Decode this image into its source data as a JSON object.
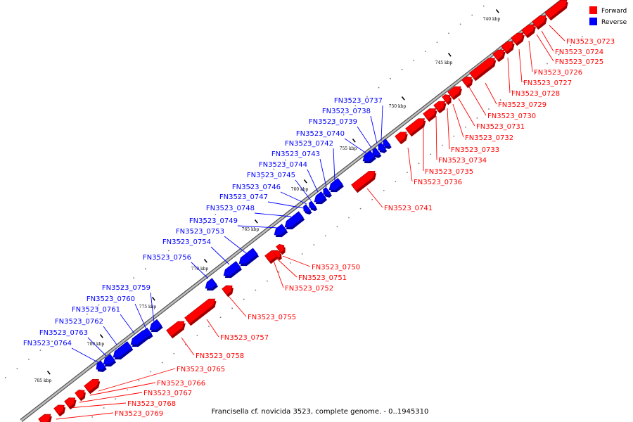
{
  "colors": {
    "forward": "#ff0000",
    "forward_dark": "#a00000",
    "reverse": "#0000ff",
    "reverse_dark": "#0000a0",
    "backbone": "#808080"
  },
  "legend": {
    "forward_label": "Forward",
    "reverse_label": "Reverse"
  },
  "caption": "Francisella cf. novicida 3523, complete genome. - 0..1945310",
  "ticks": [
    "740 kbp",
    "745 kbp",
    "750 kbp",
    "755 kbp",
    "760 kbp",
    "765 kbp",
    "770 kbp",
    "775 kbp",
    "780 kbp",
    "785 kbp"
  ],
  "forward_genes": [
    "FN3523_0723",
    "FN3523_0724",
    "FN3523_0725",
    "FN3523_0726",
    "FN3523_0727",
    "FN3523_0728",
    "FN3523_0729",
    "FN3523_0730",
    "FN3523_0731",
    "FN3523_0732",
    "FN3523_0733",
    "FN3523_0734",
    "FN3523_0735",
    "FN3523_0736",
    "FN3523_0741",
    "FN3523_0750",
    "FN3523_0751",
    "FN3523_0752",
    "FN3523_0755",
    "FN3523_0757",
    "FN3523_0758",
    "FN3523_0765",
    "FN3523_0766",
    "FN3523_0767",
    "FN3523_0768",
    "FN3523_0769"
  ],
  "reverse_genes": [
    "FN3523_0737",
    "FN3523_0738",
    "FN3523_0739",
    "FN3523_0740",
    "FN3523_0742",
    "FN3523_0743",
    "FN3523_0744",
    "FN3523_0745",
    "FN3523_0746",
    "FN3523_0747",
    "FN3523_0748",
    "FN3523_0749",
    "FN3523_0753",
    "FN3523_0754",
    "FN3523_0756",
    "FN3523_0759",
    "FN3523_0760",
    "FN3523_0761",
    "FN3523_0762",
    "FN3523_0763",
    "FN3523_0764"
  ]
}
